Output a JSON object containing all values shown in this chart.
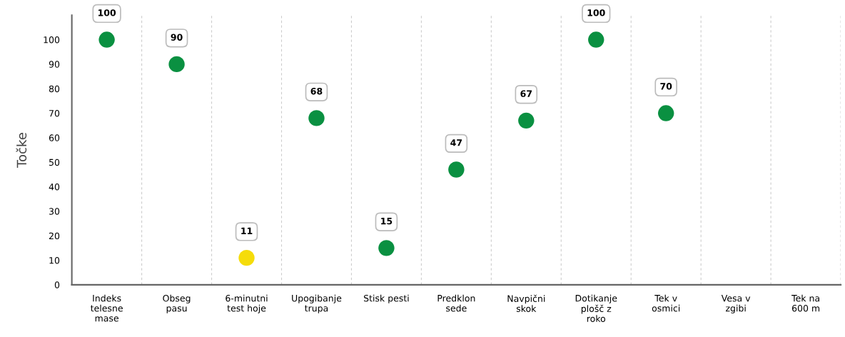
{
  "chart_data": {
    "type": "scatter",
    "ylabel": "Točke",
    "categories": [
      "Indeks\ntelesne\nmase",
      "Obseg\npasu",
      "6-minutni\ntest hoje",
      "Upogibanje\ntrupa",
      "Stisk pesti",
      "Predklon\nsede",
      "Navpični\nskok",
      "Dotikanje\nplošč z\nroko",
      "Tek v\nosmici",
      "Vesa v\nzgibi",
      "Tek na\n600 m"
    ],
    "values": [
      100,
      90,
      11,
      68,
      15,
      47,
      67,
      100,
      70,
      null,
      null
    ],
    "colors": [
      "#0a9041",
      "#0a9041",
      "#f5dc0a",
      "#0a9041",
      "#0a9041",
      "#0a9041",
      "#0a9041",
      "#0a9041",
      "#0a9041",
      "#0a9041",
      "#0a9041"
    ],
    "ylim": [
      0,
      110
    ],
    "yticks": [
      0,
      10,
      20,
      30,
      40,
      50,
      60,
      70,
      80,
      90,
      100
    ],
    "grid": "x",
    "marker": "circle",
    "data_labels": true
  }
}
